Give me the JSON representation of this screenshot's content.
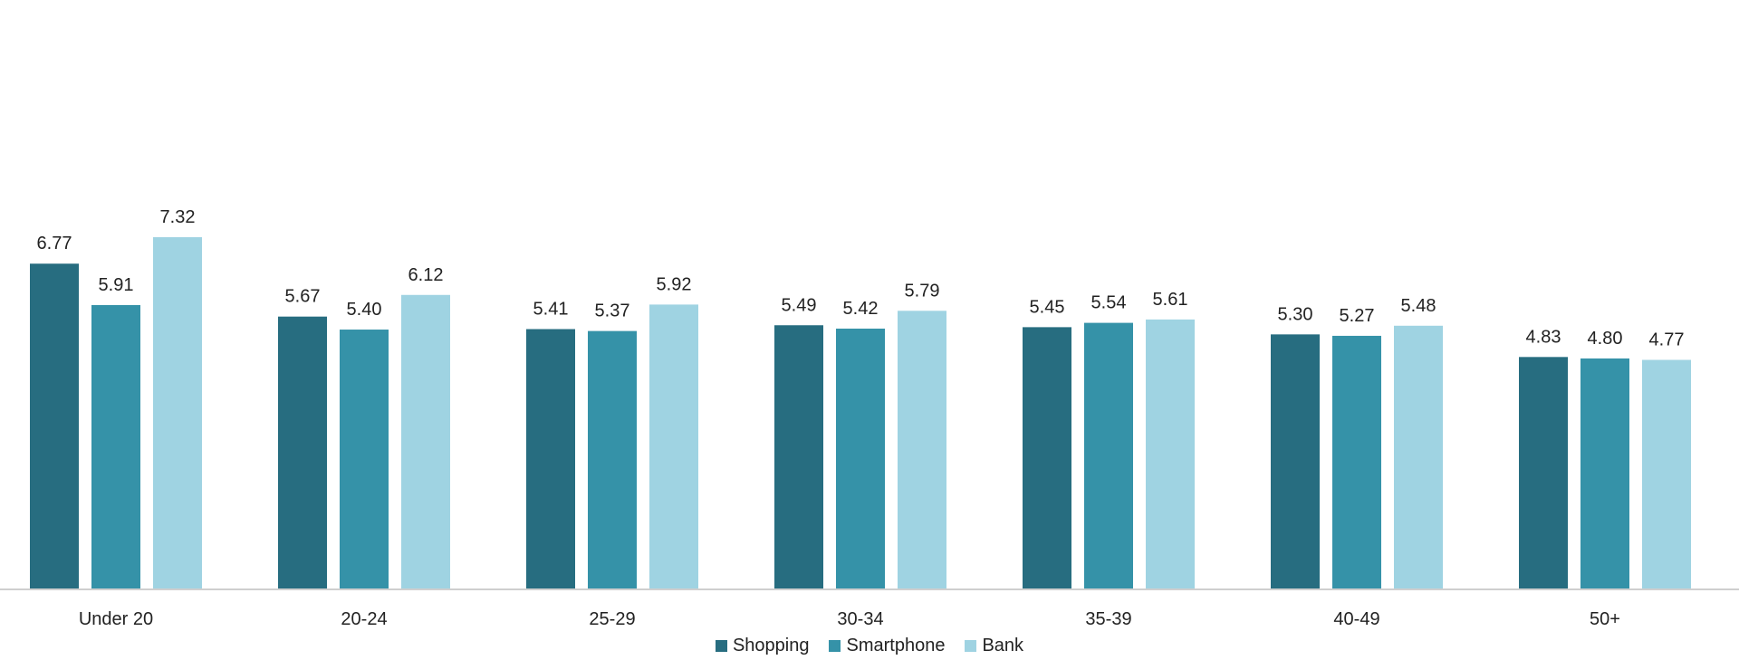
{
  "chart_data": {
    "type": "bar",
    "categories": [
      "Under 20",
      "20-24",
      "25-29",
      "30-34",
      "35-39",
      "40-49",
      "50+"
    ],
    "series": [
      {
        "name": "Shopping",
        "color": "#276d80",
        "values": [
          6.77,
          5.67,
          5.41,
          5.49,
          5.45,
          5.3,
          4.83
        ]
      },
      {
        "name": "Smartphone",
        "color": "#3592a8",
        "values": [
          5.91,
          5.4,
          5.37,
          5.42,
          5.54,
          5.27,
          4.8
        ]
      },
      {
        "name": "Bank",
        "color": "#9fd3e2",
        "values": [
          7.32,
          6.12,
          5.92,
          5.79,
          5.61,
          5.48,
          4.77
        ]
      }
    ],
    "value_labels": [
      [
        "6.77",
        "5.67",
        "5.41",
        "5.49",
        "5.45",
        "5.30",
        "4.83"
      ],
      [
        "5.91",
        "5.40",
        "5.37",
        "5.42",
        "5.54",
        "5.27",
        "4.80"
      ],
      [
        "7.32",
        "6.12",
        "5.92",
        "5.79",
        "5.61",
        "5.48",
        "4.77"
      ]
    ],
    "ylim": [
      0,
      7.32
    ],
    "grid": false,
    "legend_position": "bottom"
  }
}
